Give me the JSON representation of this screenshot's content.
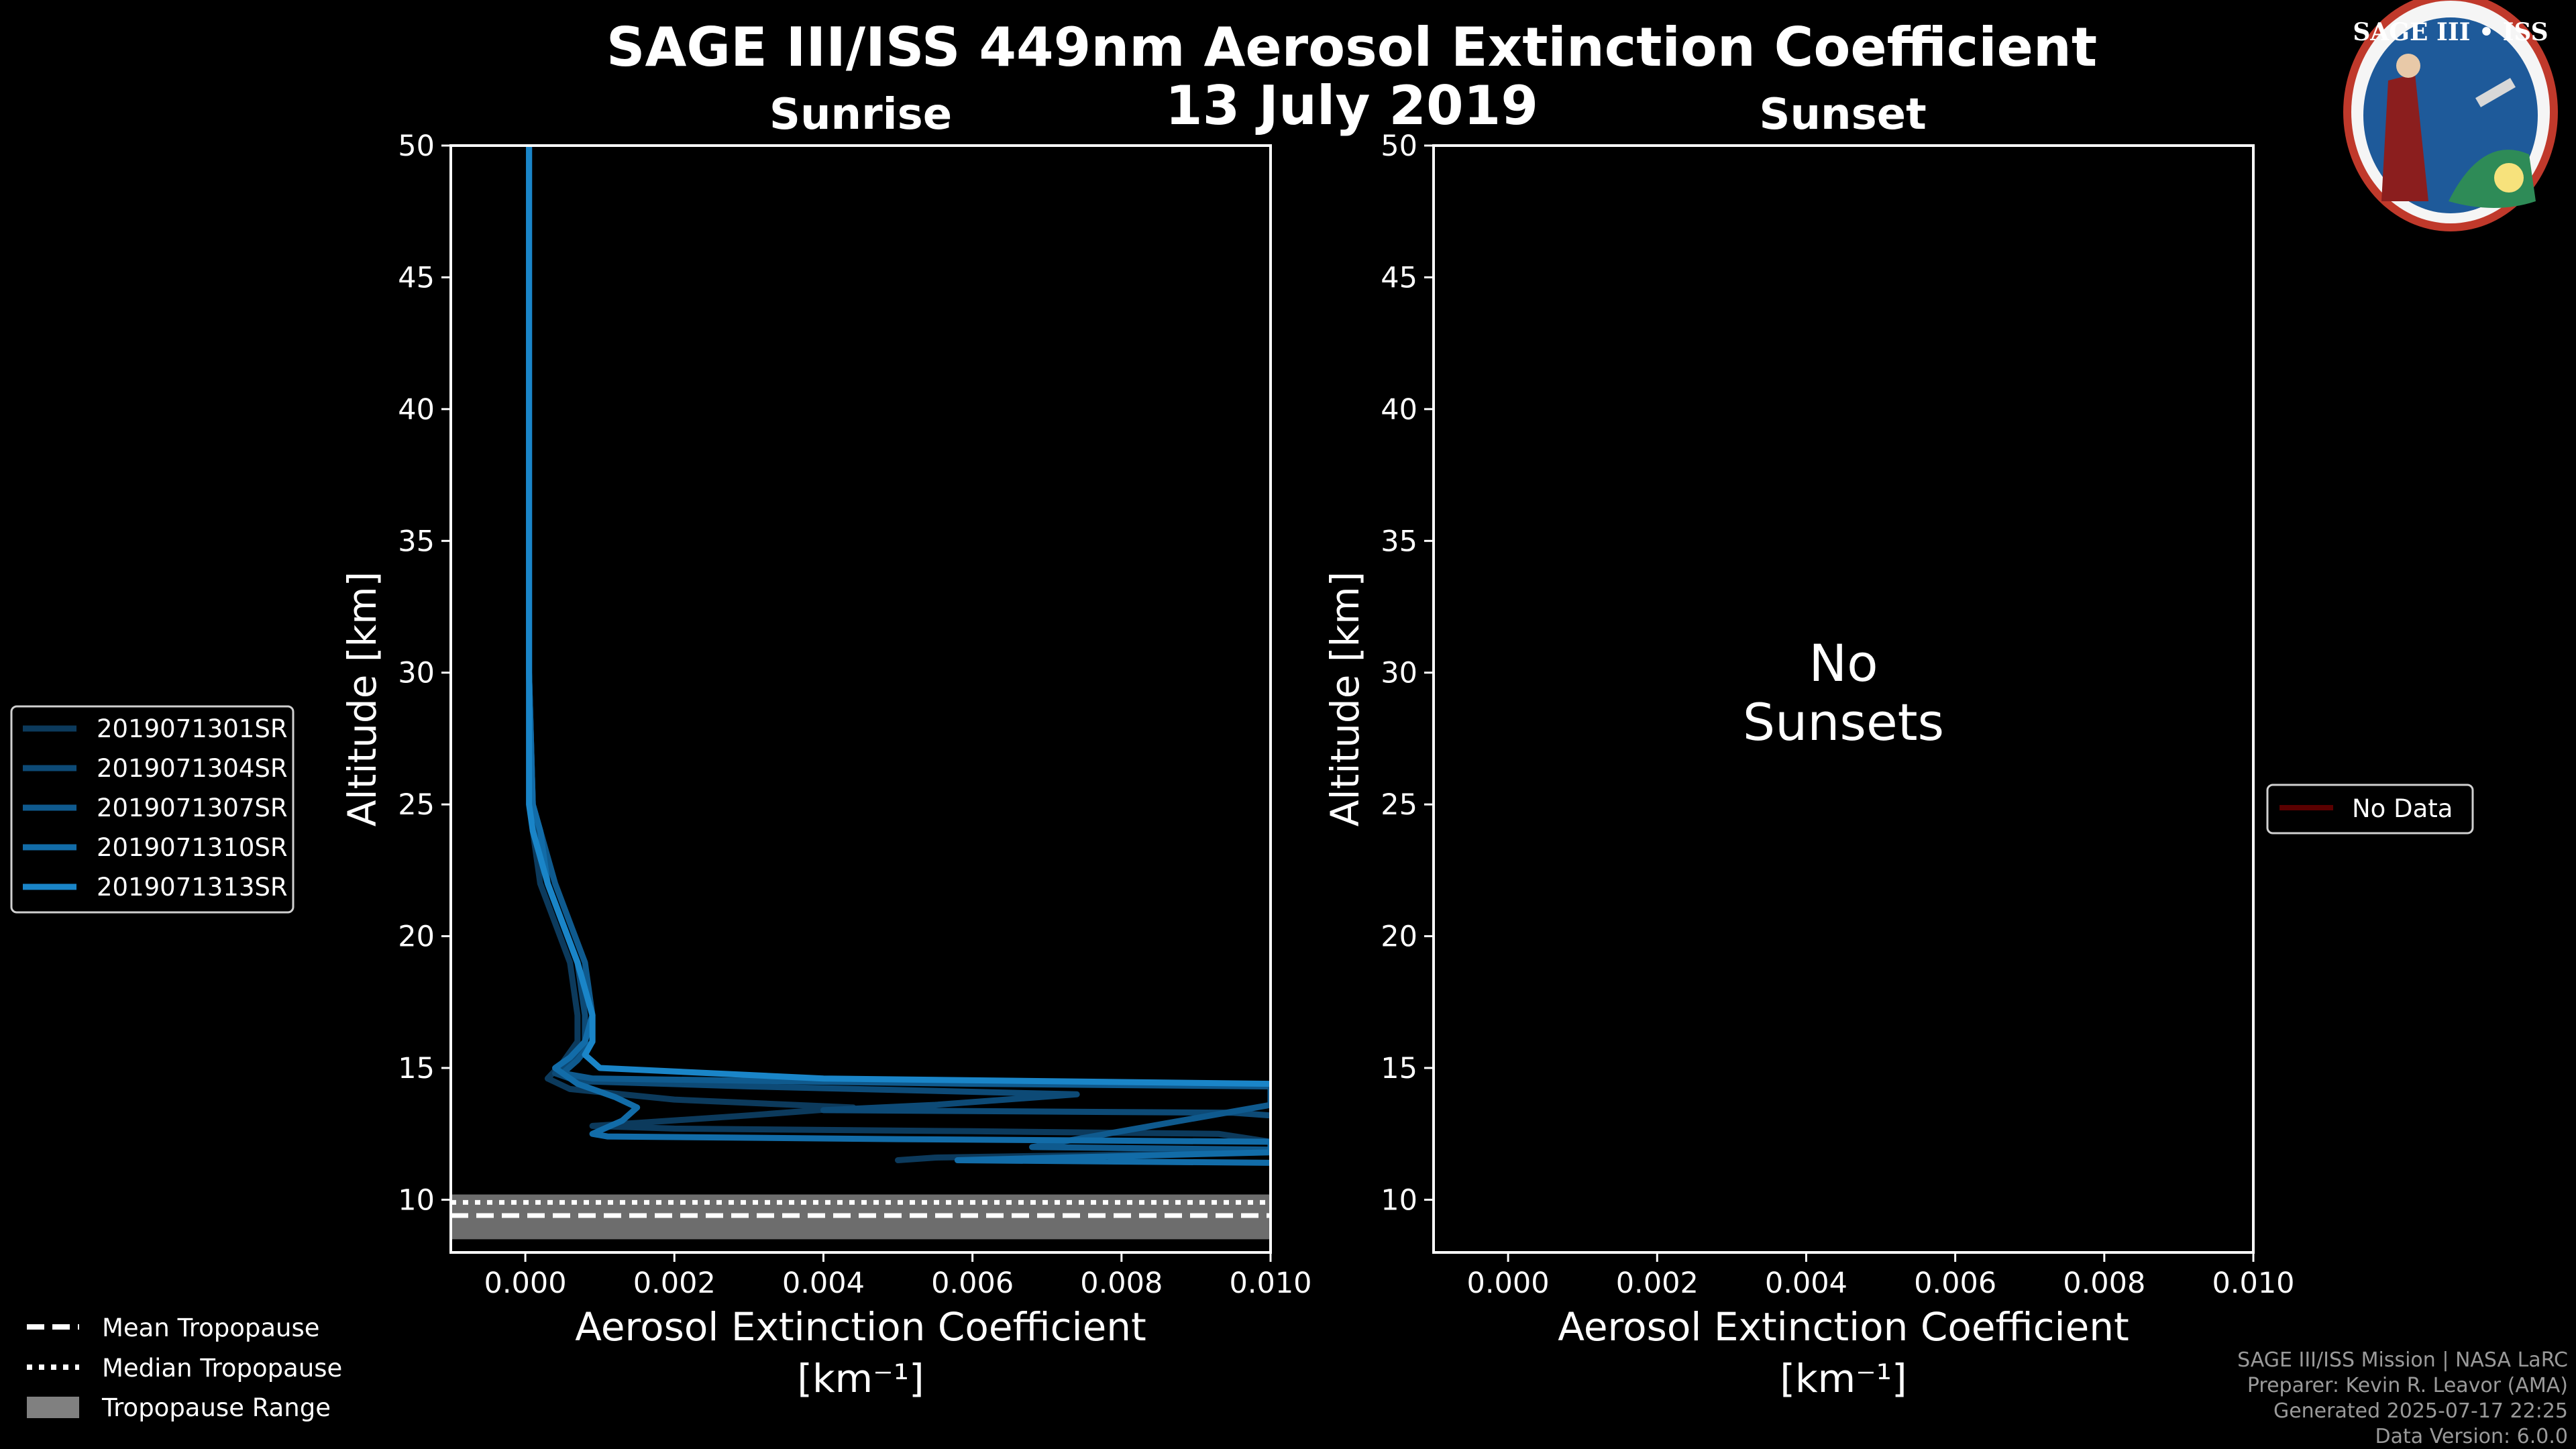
{
  "chart_data": [
    {
      "type": "line",
      "panel": "sunrise",
      "suptitle_line1": "SAGE III/ISS 449nm Aerosol Extinction Coefficient",
      "suptitle_line2": "13 July 2019",
      "title": "Sunrise",
      "xlabel": "Aerosol Extinction Coefficient",
      "xlabel_unit": "[km⁻¹]",
      "ylabel": "Altitude [km]",
      "xlim": [
        -0.001,
        0.01
      ],
      "ylim": [
        8,
        50
      ],
      "xticks": [
        "0.000",
        "0.002",
        "0.004",
        "0.006",
        "0.008",
        "0.010"
      ],
      "xtick_values": [
        0,
        0.002,
        0.004,
        0.006,
        0.008,
        0.01
      ],
      "yticks": [
        "10",
        "15",
        "20",
        "25",
        "30",
        "35",
        "40",
        "45",
        "50"
      ],
      "ytick_values": [
        10,
        15,
        20,
        25,
        30,
        35,
        40,
        45,
        50
      ],
      "tropopause": {
        "mean": 9.4,
        "median": 9.9,
        "range": [
          8.5,
          10.2
        ],
        "color": "#808080"
      },
      "series": [
        {
          "name": "2019071301SR",
          "color": "#0c3a5c",
          "x": [
            5e-05,
            5e-05,
            5e-05,
            8e-05,
            0.0001,
            0.0002,
            0.0004,
            0.0006,
            0.0007,
            0.0007,
            0.0005,
            0.0003,
            0.0006,
            0.002,
            0.0044,
            0.003,
            0.0009,
            0.002,
            0.006,
            0.0093,
            0.01,
            0.01,
            0.0055,
            0.005
          ],
          "y": [
            50,
            40,
            30,
            25,
            24,
            22,
            20.5,
            19,
            17,
            16,
            15.2,
            14.6,
            14.2,
            13.8,
            13.5,
            13.2,
            12.8,
            12.7,
            12.6,
            12.5,
            12.2,
            11.8,
            11.6,
            11.5
          ]
        },
        {
          "name": "2019071304SR",
          "color": "#0d4a76",
          "x": [
            5e-05,
            5e-05,
            5e-05,
            0.0001,
            0.00015,
            0.0003,
            0.0005,
            0.0007,
            0.0008,
            0.0008,
            0.0006,
            0.0004,
            0.0007,
            0.003,
            0.0074,
            0.0055,
            0.004,
            0.0095,
            0.01
          ],
          "y": [
            50,
            40,
            30,
            25,
            24,
            22,
            20.5,
            19,
            17,
            16,
            15.3,
            14.8,
            14.5,
            14.3,
            14.0,
            13.6,
            13.4,
            13.3,
            13.2
          ]
        },
        {
          "name": "2019071307SR",
          "color": "#0f5a8e",
          "x": [
            5e-05,
            5e-05,
            5e-05,
            0.0001,
            0.0002,
            0.0004,
            0.0006,
            0.0008,
            0.0009,
            0.0009,
            0.0007,
            0.0005,
            0.0009,
            0.006,
            0.01,
            0.01,
            0.008,
            0.0068,
            0.01
          ],
          "y": [
            50,
            40,
            30,
            25,
            24,
            22,
            20.5,
            19,
            17,
            16,
            15.3,
            14.8,
            14.6,
            14.4,
            14.3,
            13.6,
            12.6,
            12.0,
            11.9
          ]
        },
        {
          "name": "2019071310SR",
          "color": "#126ca8",
          "x": [
            5e-05,
            5e-05,
            5e-05,
            0.0001,
            0.0002,
            0.0003,
            0.0005,
            0.0007,
            0.0009,
            0.0008,
            0.0006,
            0.0004,
            0.0007,
            0.0012,
            0.0015,
            0.0013,
            0.0009,
            0.0011,
            0.005,
            0.01,
            0.01,
            0.0058,
            0.01
          ],
          "y": [
            50,
            40,
            30,
            25,
            24,
            22,
            20.5,
            19,
            17,
            16,
            15.4,
            15.0,
            14.4,
            13.9,
            13.5,
            13.0,
            12.5,
            12.4,
            12.3,
            12.2,
            11.8,
            11.5,
            11.4
          ]
        },
        {
          "name": "2019071313SR",
          "color": "#1a85c8",
          "x": [
            5e-05,
            5e-05,
            5e-05,
            5e-05,
            0.0001,
            0.0003,
            0.0005,
            0.0007,
            0.0009,
            0.0009,
            0.0008,
            0.001,
            0.004,
            0.01
          ],
          "y": [
            50,
            45,
            30,
            25,
            24,
            22,
            20.5,
            19,
            17,
            16,
            15.5,
            15.0,
            14.6,
            14.4
          ]
        }
      ],
      "legend": {
        "items": [
          "2019071301SR",
          "2019071304SR",
          "2019071307SR",
          "2019071310SR",
          "2019071313SR"
        ],
        "placement": "left"
      },
      "tropopause_legend": [
        {
          "label": "Mean Tropopause",
          "style": "dashed"
        },
        {
          "label": "Median Tropopause",
          "style": "dotted"
        },
        {
          "label": "Tropopause Range",
          "style": "patch"
        }
      ]
    },
    {
      "type": "line",
      "panel": "sunset",
      "title": "Sunset",
      "xlabel": "Aerosol Extinction Coefficient",
      "xlabel_unit": "[km⁻¹]",
      "ylabel": "Altitude [km]",
      "xlim": [
        -0.001,
        0.01
      ],
      "ylim": [
        8,
        50
      ],
      "xticks": [
        "0.000",
        "0.002",
        "0.004",
        "0.006",
        "0.008",
        "0.010"
      ],
      "xtick_values": [
        0,
        0.002,
        0.004,
        0.006,
        0.008,
        0.01
      ],
      "yticks": [
        "10",
        "15",
        "20",
        "25",
        "30",
        "35",
        "40",
        "45",
        "50"
      ],
      "ytick_values": [
        10,
        15,
        20,
        25,
        30,
        35,
        40,
        45,
        50
      ],
      "annotation_line1": "No",
      "annotation_line2": "Sunsets",
      "series": [],
      "legend": {
        "items": [
          "No Data"
        ],
        "color": "#5a0000",
        "placement": "right"
      }
    }
  ],
  "logo": {
    "title": "SAGE III • ISS",
    "colors": {
      "ring": "#c0392b",
      "inner": "#1e5a9a"
    }
  },
  "credits": {
    "line1": "SAGE III/ISS Mission | NASA LaRC",
    "line2": "Preparer: Kevin R. Leavor (AMA)",
    "line3": "Generated 2025-07-17 22:25",
    "line4": "Data Version: 6.0.0"
  }
}
